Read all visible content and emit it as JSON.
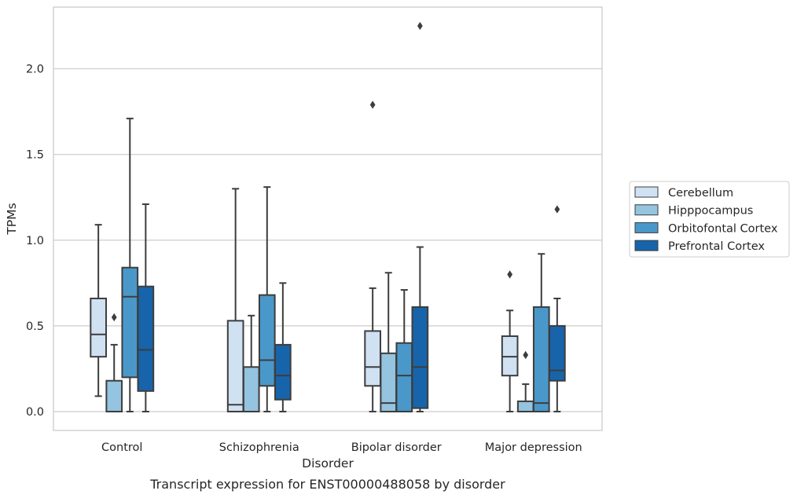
{
  "chart_data": {
    "type": "box",
    "title": "",
    "caption": "Transcript expression for ENST00000488058 by disorder",
    "xlabel": "Disorder",
    "ylabel": "TPMs",
    "ylim": [
      -0.11,
      2.36
    ],
    "yticks": [
      0.0,
      0.5,
      1.0,
      1.5,
      2.0
    ],
    "ytick_labels": [
      "0.0",
      "0.5",
      "1.0",
      "1.5",
      "2.0"
    ],
    "grid": "horizontal",
    "legend_position": "right",
    "categories": [
      "Control",
      "Schizophrenia",
      "Bipolar disorder",
      "Major depression"
    ],
    "series": [
      {
        "name": "Cerebellum",
        "color": "#d0e1f2",
        "boxes": [
          {
            "whislo": 0.09,
            "q1": 0.32,
            "med": 0.45,
            "q3": 0.66,
            "whishi": 1.09,
            "fliers": []
          },
          {
            "whislo": 0.0,
            "q1": 0.0,
            "med": 0.04,
            "q3": 0.53,
            "whishi": 1.3,
            "fliers": []
          },
          {
            "whislo": 0.0,
            "q1": 0.15,
            "med": 0.26,
            "q3": 0.47,
            "whishi": 0.72,
            "fliers": [
              1.79
            ]
          },
          {
            "whislo": 0.0,
            "q1": 0.21,
            "med": 0.32,
            "q3": 0.44,
            "whishi": 0.59,
            "fliers": [
              0.8
            ]
          }
        ]
      },
      {
        "name": "Hipppocampus",
        "color": "#94c4df",
        "boxes": [
          {
            "whislo": 0.0,
            "q1": 0.0,
            "med": 0.0,
            "q3": 0.18,
            "whishi": 0.39,
            "fliers": [
              0.55
            ]
          },
          {
            "whislo": 0.0,
            "q1": 0.0,
            "med": 0.0,
            "q3": 0.26,
            "whishi": 0.56,
            "fliers": []
          },
          {
            "whislo": 0.0,
            "q1": 0.0,
            "med": 0.05,
            "q3": 0.34,
            "whishi": 0.81,
            "fliers": []
          },
          {
            "whislo": 0.0,
            "q1": 0.0,
            "med": 0.0,
            "q3": 0.06,
            "whishi": 0.16,
            "fliers": [
              0.33
            ]
          }
        ]
      },
      {
        "name": "Orbitofontal Cortex",
        "color": "#4a98c9",
        "boxes": [
          {
            "whislo": 0.0,
            "q1": 0.2,
            "med": 0.67,
            "q3": 0.84,
            "whishi": 1.71,
            "fliers": []
          },
          {
            "whislo": 0.0,
            "q1": 0.15,
            "med": 0.3,
            "q3": 0.68,
            "whishi": 1.31,
            "fliers": []
          },
          {
            "whislo": 0.0,
            "q1": 0.0,
            "med": 0.21,
            "q3": 0.4,
            "whishi": 0.71,
            "fliers": []
          },
          {
            "whislo": 0.0,
            "q1": 0.0,
            "med": 0.05,
            "q3": 0.61,
            "whishi": 0.92,
            "fliers": []
          }
        ]
      },
      {
        "name": "Prefrontal Cortex",
        "color": "#1764ab",
        "boxes": [
          {
            "whislo": 0.0,
            "q1": 0.12,
            "med": 0.36,
            "q3": 0.73,
            "whishi": 1.21,
            "fliers": []
          },
          {
            "whislo": 0.0,
            "q1": 0.07,
            "med": 0.21,
            "q3": 0.39,
            "whishi": 0.75,
            "fliers": []
          },
          {
            "whislo": 0.0,
            "q1": 0.02,
            "med": 0.26,
            "q3": 0.61,
            "whishi": 0.96,
            "fliers": [
              2.25
            ]
          },
          {
            "whislo": 0.0,
            "q1": 0.18,
            "med": 0.24,
            "q3": 0.5,
            "whishi": 0.66,
            "fliers": [
              1.18
            ]
          }
        ]
      }
    ]
  }
}
